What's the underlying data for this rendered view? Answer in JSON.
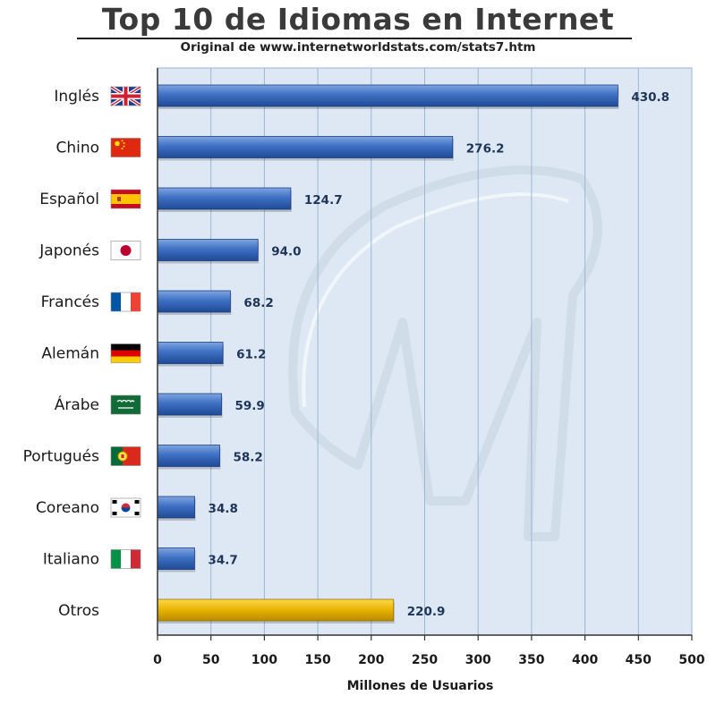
{
  "colors": {
    "plot_background": "#dde8f4",
    "grid": "#9cb6d4",
    "bar_blue": "#3d6fc2",
    "bar_gold": "#e7b300"
  },
  "chart_data": {
    "type": "bar",
    "orientation": "horizontal",
    "title": "Top 10 de Idiomas en Internet",
    "subtitle": "Original de www.internetworldstats.com/stats7.htm",
    "xlabel": "Millones de Usuarios",
    "ylabel": "",
    "xlim": [
      0,
      500
    ],
    "xticks": [
      0,
      50,
      100,
      150,
      200,
      250,
      300,
      350,
      400,
      450,
      500
    ],
    "grid": true,
    "categories": [
      "Inglés",
      "Chino",
      "Español",
      "Japonés",
      "Francés",
      "Alemán",
      "Árabe",
      "Portugués",
      "Coreano",
      "Italiano",
      "Otros"
    ],
    "values": [
      430.8,
      276.2,
      124.7,
      94.0,
      68.2,
      61.2,
      59.9,
      58.2,
      34.8,
      34.7,
      220.9
    ],
    "value_labels": [
      "430.8",
      "276.2",
      "124.7",
      "94.0",
      "68.2",
      "61.2",
      "59.9",
      "58.2",
      "34.8",
      "34.7",
      "220.9"
    ],
    "flag_icons": [
      "uk-flag-icon",
      "china-flag-icon",
      "spain-flag-icon",
      "japan-flag-icon",
      "france-flag-icon",
      "germany-flag-icon",
      "saudi-arabia-flag-icon",
      "portugal-flag-icon",
      "south-korea-flag-icon",
      "italy-flag-icon",
      ""
    ],
    "highlight_category": "Otros"
  }
}
